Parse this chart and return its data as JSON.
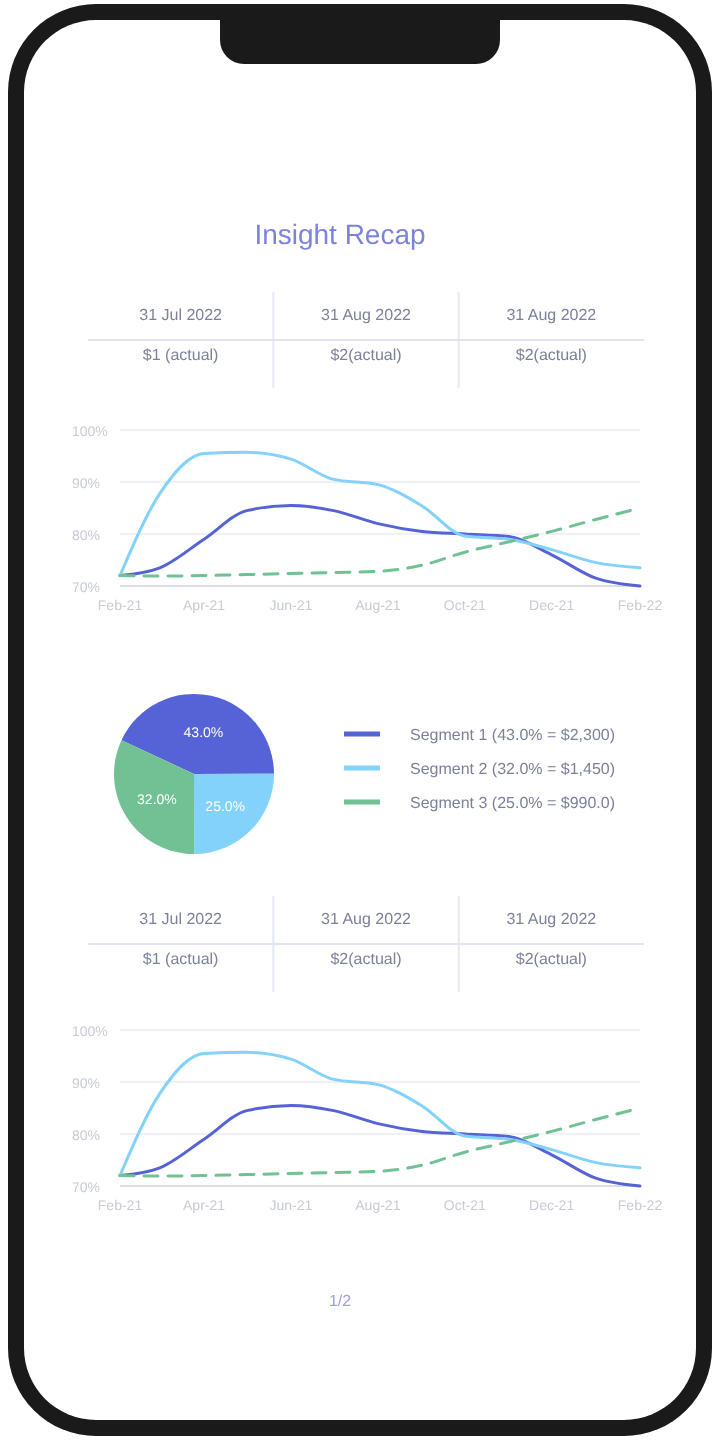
{
  "chart_data": [
    {
      "type": "other",
      "title": "Insight Recap",
      "annotations": [
        "31 Jul 2022",
        "31 Aug 2022",
        "31 Aug 2022",
        "$1 (actual)",
        "$2(actual)",
        "$2(actual)"
      ]
    },
    {
      "type": "line",
      "x": [
        "2021-02",
        "2021-03",
        "2021-04",
        "2021-05",
        "2021-06",
        "2021-07",
        "2021-08",
        "2021-09",
        "2021-10",
        "2021-11",
        "2021-12",
        "2022-01",
        "2022-02"
      ],
      "xlim": [
        "2021-02",
        "2022-02"
      ],
      "xticks": [
        {
          "value": "2021-02",
          "label": "Feb-21"
        },
        {
          "value": "2021-04",
          "label": "Apr-21"
        },
        {
          "value": "2021-06",
          "label": "Jun-21"
        },
        {
          "value": "2021-08",
          "label": "Aug-21"
        },
        {
          "value": "2021-10",
          "label": "Oct-21"
        },
        {
          "value": "2021-12",
          "label": "Dec-21"
        },
        {
          "value": "2022-02",
          "label": "Feb-22"
        }
      ],
      "ylim": [
        70,
        100
      ],
      "yticks": [
        {
          "value": 70,
          "label": "70%"
        },
        {
          "value": 80,
          "label": "80%"
        },
        {
          "value": 90,
          "label": "90%"
        },
        {
          "value": 100,
          "label": "100%"
        }
      ],
      "grid": "y",
      "marker": "none",
      "series": [
        {
          "color": "#5563d6",
          "values": [
            72,
            73.5,
            79,
            84.5,
            85.5,
            84.5,
            82,
            80.5,
            80,
            79.5,
            76,
            71.5,
            70
          ]
        },
        {
          "color": "#82d2fb",
          "values": [
            72,
            87.8,
            95.5,
            95.7,
            94.4,
            90.5,
            89.5,
            85.4,
            79.6,
            79,
            77,
            74.5,
            73.5
          ]
        },
        {
          "color": "#72c194",
          "line_style": "dashed",
          "values": [
            72,
            71.9,
            72,
            72.2,
            72.4,
            72.6,
            72.8,
            74,
            76.5,
            78.5,
            80.5,
            82.8,
            85
          ]
        }
      ]
    },
    {
      "type": "pie",
      "categories": [
        "Segment 1 (43.0% = $2,300)",
        "Segment 2 (32.0% = $1,450)",
        "Segment 3 (25.0% = $990.0)"
      ],
      "values": [
        43,
        25,
        32
      ],
      "value_labels": [
        "43.0%",
        "25.0%",
        "32.0%"
      ],
      "colors": [
        "#5563d6",
        "#82d2fb",
        "#72c194"
      ],
      "legend": "right"
    },
    {
      "type": "other",
      "annotations": [
        "31 Jul 2022",
        "31 Aug 2022",
        "31 Aug 2022",
        "$1 (actual)",
        "$2(actual)",
        "$2(actual)"
      ]
    },
    {
      "type": "line",
      "x": [
        "2021-02",
        "2021-03",
        "2021-04",
        "2021-05",
        "2021-06",
        "2021-07",
        "2021-08",
        "2021-09",
        "2021-10",
        "2021-11",
        "2021-12",
        "2022-01",
        "2022-02"
      ],
      "xlim": [
        "2021-02",
        "2022-02"
      ],
      "xticks": [
        {
          "value": "2021-02",
          "label": "Feb-21"
        },
        {
          "value": "2021-04",
          "label": "Apr-21"
        },
        {
          "value": "2021-06",
          "label": "Jun-21"
        },
        {
          "value": "2021-08",
          "label": "Aug-21"
        },
        {
          "value": "2021-10",
          "label": "Oct-21"
        },
        {
          "value": "2021-12",
          "label": "Dec-21"
        },
        {
          "value": "2022-02",
          "label": "Feb-22"
        }
      ],
      "ylim": [
        70,
        100
      ],
      "yticks": [
        {
          "value": 70,
          "label": "70%"
        },
        {
          "value": 80,
          "label": "80%"
        },
        {
          "value": 90,
          "label": "90%"
        },
        {
          "value": 100,
          "label": "100%"
        }
      ],
      "grid": "y",
      "marker": "none",
      "annotations": [
        "1/2"
      ],
      "series": [
        {
          "color": "#5563d6",
          "values": [
            72,
            73.5,
            79,
            84.5,
            85.5,
            84.5,
            82,
            80.5,
            80,
            79.5,
            76,
            71.5,
            70
          ]
        },
        {
          "color": "#82d2fb",
          "values": [
            72,
            87.8,
            95.5,
            95.7,
            94.4,
            90.5,
            89.5,
            85.4,
            79.6,
            79,
            77,
            74.5,
            73.5
          ]
        },
        {
          "color": "#72c194",
          "line_style": "dashed",
          "values": [
            72,
            71.9,
            72,
            72.2,
            72.4,
            72.6,
            72.8,
            74,
            76.5,
            78.5,
            80.5,
            82.8,
            85
          ]
        }
      ]
    }
  ]
}
